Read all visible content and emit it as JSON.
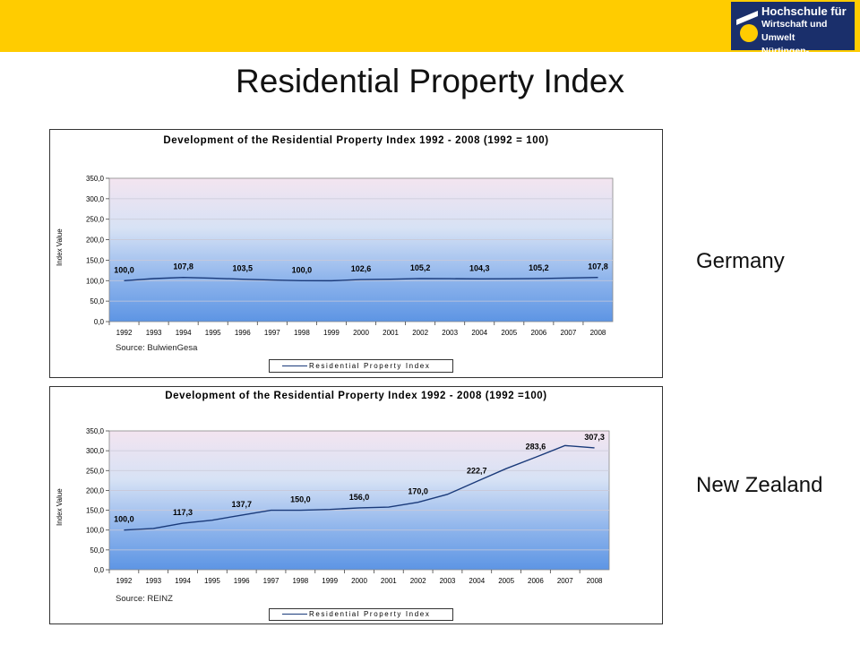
{
  "page": {
    "title": "Residential Property Index",
    "logo_lines": [
      "Hochschule für",
      "Wirtschaft und Umwelt",
      "Nürtingen-Geislingen"
    ]
  },
  "chart_data": [
    {
      "type": "line",
      "title": "Development of the Residential Property Index 1992 - 2008 (1992 = 100)",
      "ylabel": "Index Value",
      "source": "Source: BulwienGesa",
      "country": "Germany",
      "x": [
        "1992",
        "1993",
        "1994",
        "1995",
        "1996",
        "1997",
        "1998",
        "1999",
        "2000",
        "2001",
        "2002",
        "2003",
        "2004",
        "2005",
        "2006",
        "2007",
        "2008"
      ],
      "series": [
        {
          "name": "Residential Property Index",
          "values": [
            100.0,
            105.0,
            107.8,
            106.0,
            103.5,
            101.5,
            100.0,
            99.8,
            102.6,
            103.5,
            105.2,
            104.8,
            104.3,
            104.6,
            105.2,
            106.5,
            107.8
          ]
        }
      ],
      "data_labels": [
        {
          "x": "1992",
          "text": "100,0"
        },
        {
          "x": "1994",
          "text": "107,8"
        },
        {
          "x": "1996",
          "text": "103,5"
        },
        {
          "x": "1998",
          "text": "100,0"
        },
        {
          "x": "2000",
          "text": "102,6"
        },
        {
          "x": "2002",
          "text": "105,2"
        },
        {
          "x": "2004",
          "text": "104,3"
        },
        {
          "x": "2006",
          "text": "105,2"
        },
        {
          "x": "2008",
          "text": "107,8"
        }
      ],
      "yticks": [
        "0,0",
        "50,0",
        "100,0",
        "150,0",
        "200,0",
        "250,0",
        "300,0",
        "350,0"
      ],
      "ylim": [
        0,
        350
      ],
      "grid": true,
      "legend_position": "bottom"
    },
    {
      "type": "line",
      "title": "Development of the Residential Property Index 1992 - 2008 (1992 =100)",
      "ylabel": "Index Value",
      "source": "Source: REINZ",
      "country": "New Zealand",
      "x": [
        "1992",
        "1993",
        "1994",
        "1995",
        "1996",
        "1997",
        "1998",
        "1999",
        "2000",
        "2001",
        "2002",
        "2003",
        "2004",
        "2005",
        "2006",
        "2007",
        "2008"
      ],
      "series": [
        {
          "name": "Residential Property Index",
          "values": [
            100.0,
            104.0,
            117.3,
            125.0,
            137.7,
            150.0,
            150.0,
            152.0,
            156.0,
            158.0,
            170.0,
            190.0,
            222.7,
            255.0,
            283.6,
            313.0,
            307.3
          ]
        }
      ],
      "data_labels": [
        {
          "x": "1992",
          "text": "100,0"
        },
        {
          "x": "1994",
          "text": "117,3"
        },
        {
          "x": "1996",
          "text": "137,7"
        },
        {
          "x": "1998",
          "text": "150,0"
        },
        {
          "x": "2000",
          "text": "156,0"
        },
        {
          "x": "2002",
          "text": "170,0"
        },
        {
          "x": "2004",
          "text": "222,7"
        },
        {
          "x": "2006",
          "text": "283,6"
        },
        {
          "x": "2008",
          "text": "307,3"
        }
      ],
      "yticks": [
        "0,0",
        "50,0",
        "100,0",
        "150,0",
        "200,0",
        "250,0",
        "300,0",
        "350,0"
      ],
      "ylim": [
        0,
        350
      ],
      "grid": true,
      "legend_position": "bottom"
    }
  ],
  "colors": {
    "header": "#ffcc00",
    "logo_bg": "#1a2f6b",
    "line": "#1a3a7a"
  }
}
